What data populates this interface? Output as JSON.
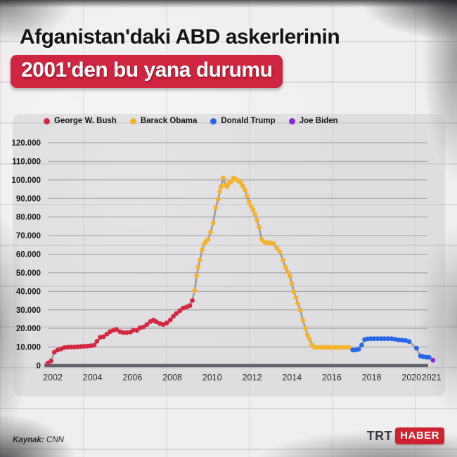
{
  "header": {
    "title": "Afganistan'daki ABD askerlerinin",
    "subtitle_badge": "2001'den bu yana durumu"
  },
  "footer": {
    "source_label": "Kaynak:",
    "source_value": "CNN",
    "logo_trt": "TRT",
    "logo_haber": "HABER"
  },
  "chart_data": {
    "type": "line",
    "legend_position": "top",
    "grid": true,
    "connector_color": "#9c9c9c",
    "axis_color": "#63636a",
    "gridline_color": "#8d8d92",
    "tick_label_color": "#1a1a1a",
    "ylim": [
      0,
      120000
    ],
    "xlim": [
      2001.5,
      2021.6
    ],
    "y_ticks": [
      {
        "value": 120000,
        "label": "120.000"
      },
      {
        "value": 110000,
        "label": "110.000"
      },
      {
        "value": 100000,
        "label": "100.000"
      },
      {
        "value": 90000,
        "label": "90.000"
      },
      {
        "value": 80000,
        "label": "80.000"
      },
      {
        "value": 70000,
        "label": "70.000"
      },
      {
        "value": 60000,
        "label": "60.000"
      },
      {
        "value": 50000,
        "label": "50.000"
      },
      {
        "value": 40000,
        "label": "40.000"
      },
      {
        "value": 30000,
        "label": "30.000"
      },
      {
        "value": 20000,
        "label": "20.000"
      },
      {
        "value": 10000,
        "label": "10.000"
      },
      {
        "value": 0,
        "label": "0"
      }
    ],
    "x_ticks": [
      {
        "year": 2002,
        "label": "2002"
      },
      {
        "year": 2004,
        "label": "2004"
      },
      {
        "year": 2006,
        "label": "2006"
      },
      {
        "year": 2008,
        "label": "2008"
      },
      {
        "year": 2010,
        "label": "2010"
      },
      {
        "year": 2012,
        "label": "2012"
      },
      {
        "year": 2014,
        "label": "2014"
      },
      {
        "year": 2016,
        "label": "2016"
      },
      {
        "year": 2018,
        "label": "2018"
      },
      {
        "year": 2020,
        "label": "2020"
      },
      {
        "year": 2021,
        "label": "2021"
      }
    ],
    "legend": [
      {
        "id": "bush",
        "label": "George W. Bush",
        "color": "#d2293f"
      },
      {
        "id": "obama",
        "label": "Barack Obama",
        "color": "#f6b32b"
      },
      {
        "id": "trump",
        "label": "Donald Trump",
        "color": "#2767e8"
      },
      {
        "id": "biden",
        "label": "Joe Biden",
        "color": "#8e2bd8"
      }
    ],
    "series": [
      {
        "president": "bush",
        "color": "#d2293f",
        "points": [
          [
            2001.75,
            1300
          ],
          [
            2001.92,
            2500
          ],
          [
            2002.08,
            7200
          ],
          [
            2002.25,
            8400
          ],
          [
            2002.42,
            9000
          ],
          [
            2002.58,
            9700
          ],
          [
            2002.75,
            9900
          ],
          [
            2002.92,
            10000
          ],
          [
            2003.08,
            10000
          ],
          [
            2003.25,
            10100
          ],
          [
            2003.42,
            10300
          ],
          [
            2003.58,
            10400
          ],
          [
            2003.75,
            10500
          ],
          [
            2003.92,
            10700
          ],
          [
            2004.08,
            11000
          ],
          [
            2004.22,
            13100
          ],
          [
            2004.38,
            15200
          ],
          [
            2004.55,
            15600
          ],
          [
            2004.72,
            17000
          ],
          [
            2004.88,
            18300
          ],
          [
            2005.05,
            19100
          ],
          [
            2005.2,
            19500
          ],
          [
            2005.38,
            18200
          ],
          [
            2005.55,
            17800
          ],
          [
            2005.72,
            17800
          ],
          [
            2005.9,
            18000
          ],
          [
            2006.05,
            19100
          ],
          [
            2006.22,
            19000
          ],
          [
            2006.38,
            20400
          ],
          [
            2006.55,
            20800
          ],
          [
            2006.72,
            22100
          ],
          [
            2006.9,
            23700
          ],
          [
            2007.05,
            24500
          ],
          [
            2007.2,
            23600
          ],
          [
            2007.38,
            22600
          ],
          [
            2007.55,
            22100
          ],
          [
            2007.72,
            23000
          ],
          [
            2007.9,
            24600
          ],
          [
            2008.05,
            26500
          ],
          [
            2008.2,
            28100
          ],
          [
            2008.38,
            29600
          ],
          [
            2008.55,
            31000
          ],
          [
            2008.72,
            31600
          ],
          [
            2008.88,
            32300
          ],
          [
            2009.0,
            35000
          ]
        ]
      },
      {
        "president": "obama",
        "color": "#f6b32b",
        "points": [
          [
            2009.12,
            40400
          ],
          [
            2009.22,
            48500
          ],
          [
            2009.3,
            53000
          ],
          [
            2009.38,
            56800
          ],
          [
            2009.5,
            62400
          ],
          [
            2009.6,
            65500
          ],
          [
            2009.7,
            67000
          ],
          [
            2009.8,
            68000
          ],
          [
            2009.92,
            71900
          ],
          [
            2010.05,
            76800
          ],
          [
            2010.18,
            85000
          ],
          [
            2010.3,
            89600
          ],
          [
            2010.38,
            93800
          ],
          [
            2010.45,
            96400
          ],
          [
            2010.55,
            101000
          ],
          [
            2010.68,
            97100
          ],
          [
            2010.75,
            96400
          ],
          [
            2010.85,
            98300
          ],
          [
            2010.95,
            99000
          ],
          [
            2011.08,
            101000
          ],
          [
            2011.2,
            100200
          ],
          [
            2011.32,
            99500
          ],
          [
            2011.45,
            98300
          ],
          [
            2011.55,
            96400
          ],
          [
            2011.65,
            94500
          ],
          [
            2011.75,
            91400
          ],
          [
            2011.85,
            88100
          ],
          [
            2011.95,
            85800
          ],
          [
            2012.05,
            83900
          ],
          [
            2012.15,
            81300
          ],
          [
            2012.25,
            78200
          ],
          [
            2012.35,
            74500
          ],
          [
            2012.48,
            68000
          ],
          [
            2012.62,
            66500
          ],
          [
            2012.78,
            66000
          ],
          [
            2012.92,
            66000
          ],
          [
            2013.08,
            65700
          ],
          [
            2013.25,
            63200
          ],
          [
            2013.4,
            61300
          ],
          [
            2013.55,
            56800
          ],
          [
            2013.68,
            53000
          ],
          [
            2013.8,
            50300
          ],
          [
            2013.9,
            48100
          ],
          [
            2014.0,
            44300
          ],
          [
            2014.1,
            39700
          ],
          [
            2014.2,
            36700
          ],
          [
            2014.3,
            33500
          ],
          [
            2014.42,
            30000
          ],
          [
            2014.55,
            24500
          ],
          [
            2014.68,
            20000
          ],
          [
            2014.78,
            16600
          ],
          [
            2014.88,
            14400
          ],
          [
            2015.0,
            11300
          ],
          [
            2015.12,
            9900
          ],
          [
            2015.3,
            9800
          ],
          [
            2015.48,
            9800
          ],
          [
            2015.65,
            9800
          ],
          [
            2015.82,
            9800
          ],
          [
            2016.0,
            9800
          ],
          [
            2016.18,
            9800
          ],
          [
            2016.35,
            9800
          ],
          [
            2016.52,
            9800
          ],
          [
            2016.7,
            9800
          ],
          [
            2016.88,
            9800
          ]
        ]
      },
      {
        "president": "trump",
        "color": "#2767e8",
        "points": [
          [
            2017.05,
            8400
          ],
          [
            2017.2,
            8400
          ],
          [
            2017.35,
            8900
          ],
          [
            2017.5,
            11000
          ],
          [
            2017.65,
            14000
          ],
          [
            2017.8,
            14400
          ],
          [
            2017.95,
            14500
          ],
          [
            2018.12,
            14500
          ],
          [
            2018.3,
            14500
          ],
          [
            2018.48,
            14500
          ],
          [
            2018.65,
            14500
          ],
          [
            2018.82,
            14500
          ],
          [
            2019.0,
            14500
          ],
          [
            2019.18,
            14200
          ],
          [
            2019.35,
            13800
          ],
          [
            2019.52,
            13700
          ],
          [
            2019.7,
            13500
          ],
          [
            2019.88,
            13000
          ],
          [
            2020.25,
            9400
          ],
          [
            2020.45,
            5200
          ],
          [
            2020.6,
            4800
          ],
          [
            2020.75,
            4500
          ],
          [
            2020.88,
            4500
          ]
        ]
      },
      {
        "president": "biden",
        "color": "#8e2bd8",
        "points": [
          [
            2021.08,
            2900
          ]
        ]
      }
    ]
  }
}
